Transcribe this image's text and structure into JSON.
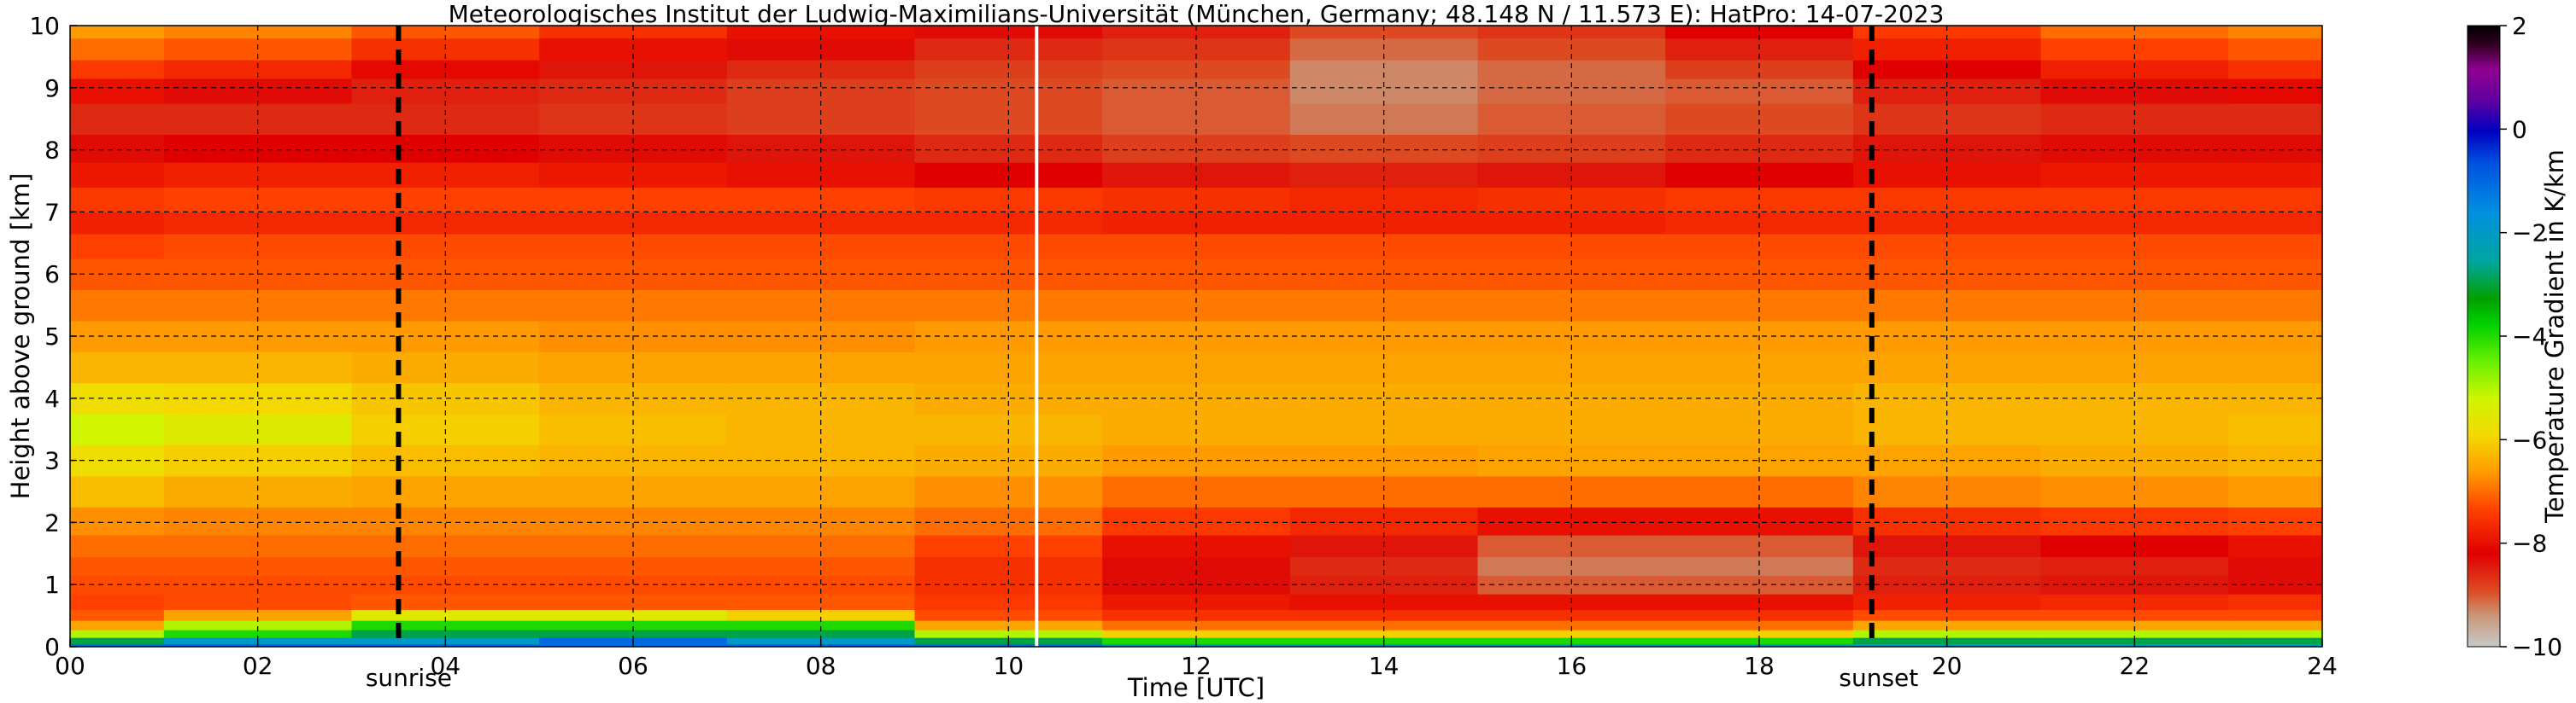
{
  "chart_data": {
    "type": "heatmap",
    "title": "Meteorologisches Institut der Ludwig-Maximilians-Universität (München, Germany; 48.148 N / 11.573 E):    HatPro: 14-07-2023",
    "xlabel": "Time [UTC]",
    "ylabel": "Height above ground [km]",
    "xlim": [
      0,
      24
    ],
    "ylim": [
      0,
      10
    ],
    "x_ticks": [
      "00",
      "02",
      "04",
      "06",
      "08",
      "10",
      "12",
      "14",
      "16",
      "18",
      "20",
      "22",
      "24"
    ],
    "y_ticks": [
      "0",
      "1",
      "2",
      "3",
      "4",
      "5",
      "6",
      "7",
      "8",
      "9",
      "10"
    ],
    "grid": true,
    "colorbar": {
      "label": "Temperature Gradient in K/km",
      "range": [
        -10,
        2
      ],
      "ticks": [
        "2",
        "0",
        "−2",
        "−4",
        "−6",
        "−8",
        "−10"
      ]
    },
    "annotations": {
      "sunrise": {
        "time": 3.5,
        "label": "sunrise"
      },
      "sunset": {
        "time": 19.2,
        "label": "sunset"
      },
      "data_gap_time": 10.3
    },
    "profile_heights_km": [
      0,
      0.1,
      0.2,
      0.35,
      0.5,
      0.7,
      1.0,
      1.3,
      1.6,
      2.0,
      2.5,
      3.0,
      3.5,
      4.0,
      4.5,
      5.0,
      5.5,
      6.0,
      6.5,
      6.8,
      7.2,
      7.6,
      8.0,
      8.5,
      9.0,
      9.3,
      9.6,
      10.0
    ],
    "profile_times_h": [
      0,
      2,
      4,
      6,
      8,
      10,
      12,
      14,
      16,
      18,
      20,
      22,
      24
    ],
    "gradient_k_per_km": [
      [
        -1,
        -1,
        -1,
        -1,
        -1,
        -1,
        -2,
        -2,
        -2,
        -2,
        -2,
        -2,
        -2
      ],
      [
        -3,
        -2,
        -2,
        -1,
        -2,
        -3,
        -4,
        -4,
        -4,
        -4,
        -3,
        -3,
        -3
      ],
      [
        -5,
        -4,
        -3,
        -3,
        -3,
        -5,
        -6,
        -6,
        -6,
        -6,
        -5,
        -5,
        -5
      ],
      [
        -6.5,
        -5,
        -4,
        -4,
        -4,
        -6.5,
        -7,
        -7,
        -7,
        -7,
        -6.5,
        -6.5,
        -6.5
      ],
      [
        -7.2,
        -6.5,
        -5.5,
        -5.5,
        -6,
        -7.3,
        -7.6,
        -7.6,
        -7.6,
        -7.6,
        -7.3,
        -7.3,
        -7.3
      ],
      [
        -7.4,
        -7.3,
        -7.2,
        -7.2,
        -7.2,
        -7.5,
        -7.9,
        -8,
        -8,
        -8,
        -7.8,
        -7.7,
        -7.6
      ],
      [
        -7.3,
        -7.3,
        -7.3,
        -7.3,
        -7.3,
        -7.6,
        -8.3,
        -8.5,
        -9,
        -9,
        -8.5,
        -8.4,
        -8.3
      ],
      [
        -7.2,
        -7.2,
        -7.2,
        -7.2,
        -7.2,
        -7.6,
        -8.3,
        -8.6,
        -9.2,
        -9.2,
        -8.6,
        -8.5,
        -8.3
      ],
      [
        -7,
        -7,
        -7,
        -7,
        -7,
        -7.4,
        -8,
        -8.4,
        -9,
        -9,
        -8.4,
        -8.2,
        -8
      ],
      [
        -6.7,
        -6.8,
        -6.8,
        -6.8,
        -6.8,
        -7,
        -7.5,
        -7.7,
        -8,
        -8,
        -7.6,
        -7.5,
        -7.4
      ],
      [
        -6.2,
        -6.4,
        -6.5,
        -6.5,
        -6.5,
        -6.7,
        -7,
        -7,
        -7,
        -7,
        -6.8,
        -6.7,
        -6.6
      ],
      [
        -5.8,
        -6,
        -6.2,
        -6.3,
        -6.3,
        -6.4,
        -6.6,
        -6.6,
        -6.5,
        -6.5,
        -6.5,
        -6.4,
        -6.3
      ],
      [
        -5.2,
        -5.5,
        -6,
        -6.2,
        -6.3,
        -6.3,
        -6.4,
        -6.4,
        -6.4,
        -6.4,
        -6.3,
        -6.3,
        -6.2
      ],
      [
        -5.8,
        -5.9,
        -6.1,
        -6.3,
        -6.3,
        -6.4,
        -6.4,
        -6.4,
        -6.4,
        -6.4,
        -6.3,
        -6.3,
        -6.3
      ],
      [
        -6.3,
        -6.3,
        -6.4,
        -6.5,
        -6.5,
        -6.5,
        -6.5,
        -6.5,
        -6.5,
        -6.5,
        -6.5,
        -6.5,
        -6.5
      ],
      [
        -6.6,
        -6.6,
        -6.6,
        -6.7,
        -6.7,
        -6.6,
        -6.6,
        -6.6,
        -6.6,
        -6.6,
        -6.6,
        -6.6,
        -6.6
      ],
      [
        -6.9,
        -6.9,
        -6.9,
        -6.9,
        -6.9,
        -6.9,
        -6.9,
        -6.9,
        -6.9,
        -6.9,
        -6.9,
        -6.9,
        -6.9
      ],
      [
        -7.2,
        -7.2,
        -7.2,
        -7.2,
        -7.2,
        -7.2,
        -7.2,
        -7.2,
        -7.2,
        -7.2,
        -7.2,
        -7.2,
        -7.2
      ],
      [
        -7.4,
        -7.3,
        -7.3,
        -7.3,
        -7.3,
        -7.3,
        -7.3,
        -7.3,
        -7.3,
        -7.3,
        -7.3,
        -7.3,
        -7.3
      ],
      [
        -7.8,
        -7.7,
        -7.7,
        -7.7,
        -7.7,
        -7.7,
        -7.8,
        -7.8,
        -7.8,
        -7.7,
        -7.7,
        -7.7,
        -7.7
      ],
      [
        -7.5,
        -7.4,
        -7.4,
        -7.4,
        -7.4,
        -7.5,
        -7.6,
        -7.7,
        -7.6,
        -7.5,
        -7.5,
        -7.5,
        -7.5
      ],
      [
        -7.9,
        -7.8,
        -7.8,
        -7.9,
        -8,
        -8.2,
        -8.4,
        -8.5,
        -8.4,
        -8.2,
        -8,
        -7.9,
        -7.9
      ],
      [
        -8.3,
        -8.2,
        -8.2,
        -8.3,
        -8.4,
        -8.6,
        -8.8,
        -8.9,
        -8.8,
        -8.6,
        -8.4,
        -8.3,
        -8.3
      ],
      [
        -8.6,
        -8.6,
        -8.6,
        -8.7,
        -8.8,
        -8.9,
        -9,
        -9.2,
        -9,
        -8.9,
        -8.7,
        -8.6,
        -8.6
      ],
      [
        -8,
        -8.3,
        -8.5,
        -8.6,
        -8.8,
        -8.9,
        -9,
        -9.3,
        -9.1,
        -9,
        -8.5,
        -8.3,
        -8.1
      ],
      [
        -7.5,
        -7.7,
        -8.1,
        -8.4,
        -8.6,
        -8.8,
        -8.9,
        -9.3,
        -9.1,
        -8.8,
        -8.2,
        -7.8,
        -7.6
      ],
      [
        -7,
        -7.2,
        -7.6,
        -8,
        -8.3,
        -8.6,
        -8.7,
        -9.1,
        -8.9,
        -8.5,
        -7.8,
        -7.4,
        -7.2
      ],
      [
        -6.6,
        -6.8,
        -7.2,
        -7.6,
        -8,
        -8.3,
        -8.5,
        -8.9,
        -8.7,
        -8.2,
        -7.5,
        -7,
        -6.8
      ]
    ]
  }
}
